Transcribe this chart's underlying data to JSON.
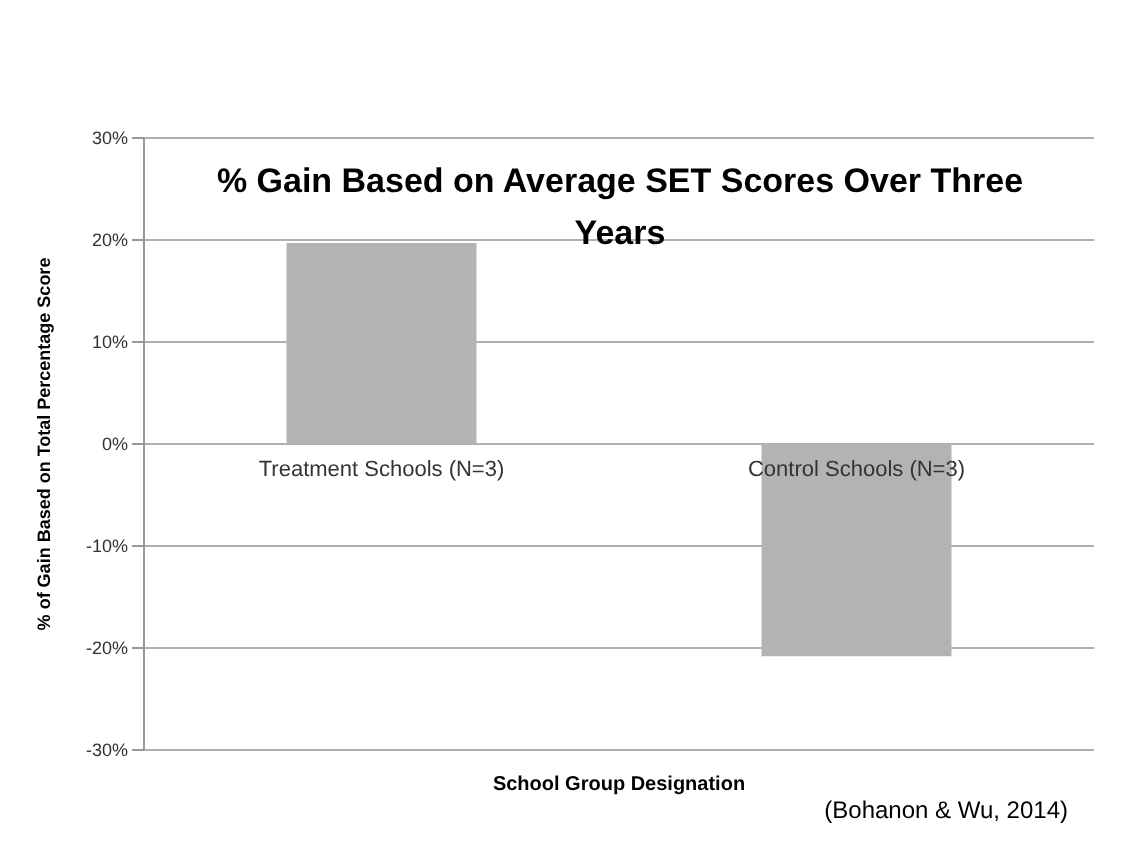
{
  "chart_data": {
    "type": "bar",
    "title": "% Gain Based on Average SET Scores Over Three Years",
    "categories": [
      "Treatment Schools (N=3)",
      "Control Schools (N=3)"
    ],
    "values": [
      19.7,
      -20.8
    ],
    "color": "#b3b3b3",
    "xlabel": "School Group Designation",
    "ylabel": "% of Gain Based on  Total Percentage Score",
    "ylim": [
      -30,
      30
    ],
    "yticks": [
      {
        "value": -30,
        "label": "-30%"
      },
      {
        "value": -20,
        "label": "-20%"
      },
      {
        "value": -10,
        "label": "-10%"
      },
      {
        "value": 0,
        "label": "0%"
      },
      {
        "value": 10,
        "label": "10%"
      },
      {
        "value": 20,
        "label": "20%"
      },
      {
        "value": 30,
        "label": "30%"
      }
    ],
    "grid": "y",
    "annotations": [
      "(Bohanon & Wu, 2014)"
    ]
  }
}
